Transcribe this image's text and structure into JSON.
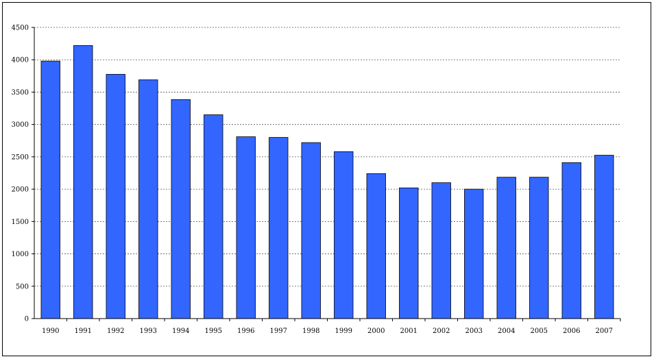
{
  "chart_data": {
    "type": "bar",
    "categories": [
      "1990",
      "1991",
      "1992",
      "1993",
      "1994",
      "1995",
      "1996",
      "1997",
      "1998",
      "1999",
      "2000",
      "2001",
      "2002",
      "2003",
      "2004",
      "2005",
      "2006",
      "2007"
    ],
    "values": [
      3980,
      4220,
      3775,
      3690,
      3385,
      3150,
      2810,
      2800,
      2720,
      2580,
      2240,
      2020,
      2100,
      2000,
      2185,
      2185,
      2410,
      2525
    ],
    "yticks": [
      "0",
      "500",
      "1000",
      "1500",
      "2000",
      "2500",
      "3000",
      "3500",
      "4000",
      "4500"
    ],
    "ylim": [
      0,
      4500
    ],
    "grid": true,
    "bar_color": "#3366ff",
    "bar_edge_color": "#000000",
    "grid_color": "#555555"
  }
}
